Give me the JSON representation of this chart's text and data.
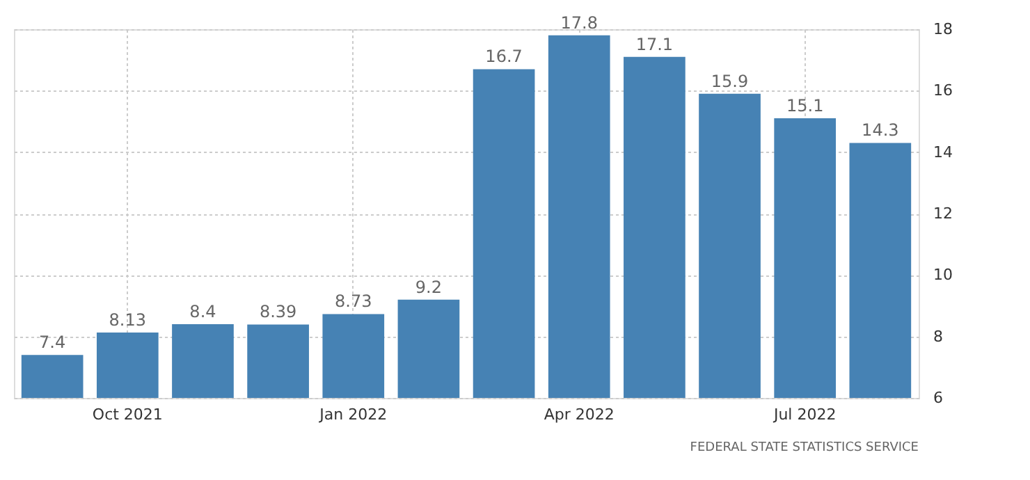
{
  "chart_data": {
    "type": "bar",
    "categories": [
      null,
      "Oct 2021",
      null,
      null,
      "Jan 2022",
      null,
      null,
      "Apr 2022",
      null,
      null,
      "Jul 2022",
      null
    ],
    "values": [
      7.4,
      8.13,
      8.4,
      8.39,
      8.73,
      9.2,
      16.7,
      17.8,
      17.1,
      15.9,
      15.1,
      14.3
    ],
    "color": "#4682b4",
    "data_labels": true,
    "ylim": [
      6,
      18
    ],
    "yticks": [
      6,
      8,
      10,
      12,
      14,
      16,
      18
    ],
    "grid": true,
    "annotations": [
      "FEDERAL STATE STATISTICS SERVICE"
    ]
  }
}
